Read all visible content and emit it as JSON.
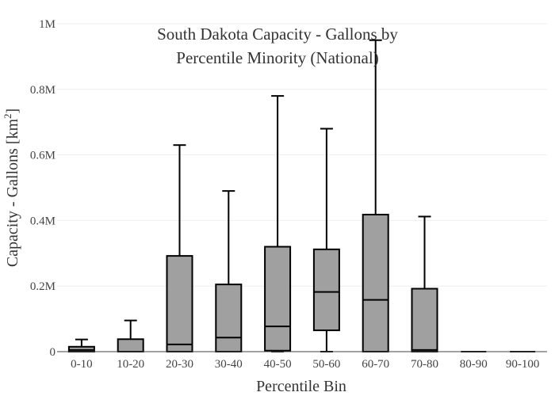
{
  "chart_data": {
    "type": "box",
    "title_line1": "South Dakota Capacity - Gallons by",
    "title_line2": "Percentile Minority (National)",
    "xlabel": "Percentile Bin",
    "ylabel_main": "Capacity - Gallons  [km",
    "ylabel_sup": "2",
    "ylabel_end": "]",
    "ylim": [
      0,
      1000000
    ],
    "yticks": [
      {
        "value": 0,
        "label": "0"
      },
      {
        "value": 200000,
        "label": "0.2M"
      },
      {
        "value": 400000,
        "label": "0.4M"
      },
      {
        "value": 600000,
        "label": "0.6M"
      },
      {
        "value": 800000,
        "label": "0.8M"
      },
      {
        "value": 1000000,
        "label": "1M"
      }
    ],
    "grid": true,
    "box_color": "#a0a0a0",
    "categories": [
      "0-10",
      "10-20",
      "20-30",
      "30-40",
      "40-50",
      "50-60",
      "60-70",
      "70-80",
      "80-90",
      "90-100"
    ],
    "boxes": [
      {
        "min": 0,
        "q1": 0,
        "median": 5000,
        "q3": 15000,
        "max": 37000
      },
      {
        "min": 0,
        "q1": 0,
        "median": 0,
        "q3": 38000,
        "max": 95000
      },
      {
        "min": 0,
        "q1": 0,
        "median": 22000,
        "q3": 292000,
        "max": 630000
      },
      {
        "min": 0,
        "q1": 0,
        "median": 43000,
        "q3": 205000,
        "max": 490000
      },
      {
        "min": 0,
        "q1": 3000,
        "median": 77000,
        "q3": 320000,
        "max": 780000
      },
      {
        "min": 0,
        "q1": 65000,
        "median": 182000,
        "q3": 312000,
        "max": 680000
      },
      {
        "min": 0,
        "q1": 0,
        "median": 158000,
        "q3": 418000,
        "max": 950000
      },
      {
        "min": 0,
        "q1": 0,
        "median": 5000,
        "q3": 192000,
        "max": 412000
      },
      {
        "min": 0,
        "q1": 0,
        "median": 0,
        "q3": 0,
        "max": 0
      },
      {
        "min": 0,
        "q1": 0,
        "median": 0,
        "q3": 0,
        "max": 0
      }
    ]
  }
}
